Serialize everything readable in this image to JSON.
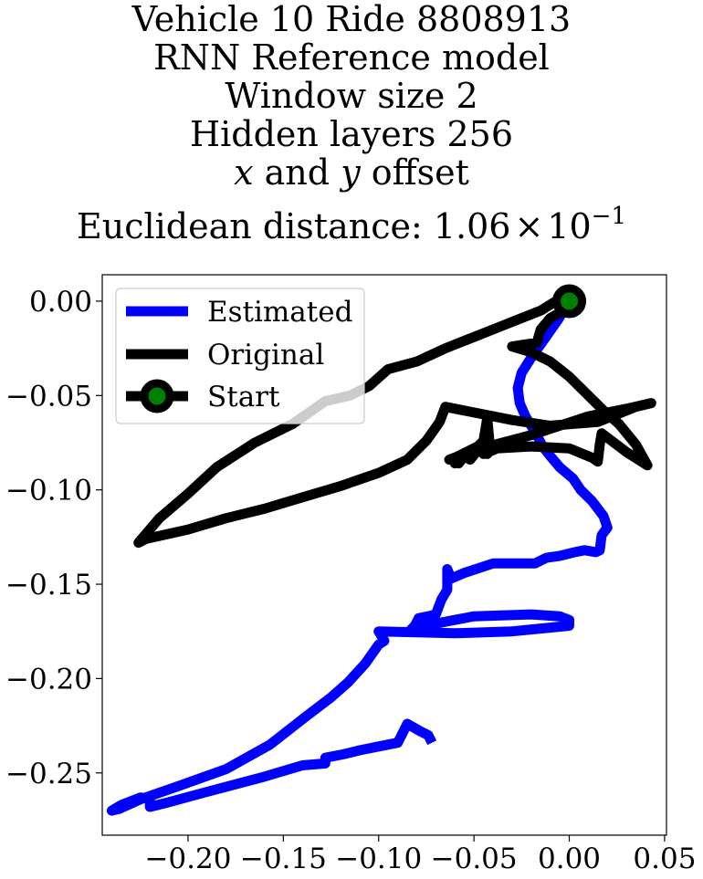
{
  "chart_data": {
    "type": "line",
    "title_lines": [
      "Vehicle 10 Ride 8808913",
      "RNN Reference model",
      "Window size 2",
      "Hidden layers 256"
    ],
    "title_offset_line": {
      "x": "x",
      "and": " and ",
      "y": "y",
      "rest": " offset"
    },
    "title_distance": {
      "prefix": "Euclidean distance: ",
      "mantissa": "1.06",
      "times": "×",
      "base": "10",
      "exponent": "−1"
    },
    "xlim": [
      -0.245,
      0.051
    ],
    "ylim": [
      -0.283,
      0.014
    ],
    "x_ticks": [
      -0.2,
      -0.15,
      -0.1,
      -0.05,
      0.0,
      0.05
    ],
    "x_tick_labels": [
      "−0.20",
      "−0.15",
      "−0.10",
      "−0.05",
      "0.00",
      "0.05"
    ],
    "y_ticks": [
      0.0,
      -0.05,
      -0.1,
      -0.15,
      -0.2,
      -0.25
    ],
    "y_tick_labels": [
      "0.00",
      "−0.05",
      "−0.10",
      "−0.15",
      "−0.20",
      "−0.25"
    ],
    "legend": {
      "placement": "top-left",
      "entries": [
        "Estimated",
        "Original",
        "Start"
      ]
    },
    "colors": {
      "estimated": "#0000ff",
      "original": "#000000",
      "start_marker": "#008000"
    },
    "series": [
      {
        "name": "Estimated",
        "x": [
          0.0,
          -0.006,
          -0.013,
          -0.02,
          -0.025,
          -0.027,
          -0.026,
          -0.023,
          -0.02,
          -0.017,
          -0.014,
          -0.01,
          -0.005,
          0.002,
          0.006,
          0.012,
          0.018,
          0.02,
          0.017,
          0.016,
          0.014,
          0.008,
          0.003,
          -0.005,
          -0.012,
          -0.018,
          -0.025,
          -0.04,
          -0.055,
          -0.062,
          -0.064,
          -0.064,
          -0.067,
          -0.07,
          -0.074,
          -0.079,
          -0.081,
          -0.083,
          -0.082,
          -0.076,
          -0.05,
          -0.02,
          -0.005,
          0.0,
          0.0,
          -0.01,
          -0.03,
          -0.06,
          -0.1,
          -0.097,
          -0.1,
          -0.107,
          -0.116,
          -0.125,
          -0.138,
          -0.157,
          -0.18,
          -0.205,
          -0.225,
          -0.236,
          -0.24,
          -0.235,
          -0.225,
          -0.22,
          -0.22,
          -0.212,
          -0.19,
          -0.16,
          -0.14,
          -0.128,
          -0.128,
          -0.118,
          -0.11,
          -0.1,
          -0.09,
          -0.085,
          -0.078,
          -0.074,
          -0.072
        ],
        "y": [
          0.0,
          -0.01,
          -0.02,
          -0.03,
          -0.038,
          -0.046,
          -0.054,
          -0.061,
          -0.066,
          -0.071,
          -0.077,
          -0.082,
          -0.088,
          -0.094,
          -0.1,
          -0.106,
          -0.114,
          -0.12,
          -0.124,
          -0.132,
          -0.133,
          -0.132,
          -0.133,
          -0.135,
          -0.136,
          -0.139,
          -0.139,
          -0.139,
          -0.144,
          -0.147,
          -0.142,
          -0.153,
          -0.158,
          -0.166,
          -0.167,
          -0.168,
          -0.172,
          -0.174,
          -0.175,
          -0.172,
          -0.167,
          -0.166,
          -0.167,
          -0.169,
          -0.172,
          -0.173,
          -0.175,
          -0.176,
          -0.175,
          -0.18,
          -0.182,
          -0.192,
          -0.202,
          -0.21,
          -0.22,
          -0.235,
          -0.248,
          -0.257,
          -0.264,
          -0.269,
          -0.27,
          -0.267,
          -0.263,
          -0.264,
          -0.268,
          -0.266,
          -0.26,
          -0.252,
          -0.246,
          -0.245,
          -0.242,
          -0.24,
          -0.238,
          -0.236,
          -0.234,
          -0.224,
          -0.228,
          -0.23,
          -0.234
        ]
      },
      {
        "name": "Original",
        "x": [
          0.0,
          -0.007,
          -0.015,
          -0.025,
          -0.035,
          -0.05,
          -0.065,
          -0.08,
          -0.095,
          -0.105,
          -0.115,
          -0.128,
          -0.135,
          -0.145,
          -0.165,
          -0.185,
          -0.2,
          -0.215,
          -0.226,
          -0.222,
          -0.2,
          -0.18,
          -0.16,
          -0.14,
          -0.12,
          -0.1,
          -0.085,
          -0.075,
          -0.068,
          -0.065,
          -0.05,
          -0.03,
          -0.01,
          0.015,
          0.035,
          0.043,
          0.03,
          0.01,
          -0.005,
          -0.02,
          -0.035,
          -0.05,
          -0.063,
          -0.058,
          -0.06,
          -0.051,
          -0.045,
          -0.043,
          -0.042,
          -0.043,
          -0.048,
          -0.052,
          -0.055,
          -0.058,
          -0.062,
          -0.048,
          -0.045,
          -0.04,
          -0.038,
          -0.02,
          0.0,
          0.012,
          0.015,
          0.016,
          0.017,
          0.03,
          0.041,
          0.035,
          0.026,
          0.018,
          0.009,
          0.0,
          -0.01,
          -0.02,
          -0.03,
          -0.017,
          -0.015,
          -0.01,
          -0.003,
          0.0,
          0.002
        ],
        "y": [
          0.0,
          0.0,
          -0.005,
          -0.009,
          -0.013,
          -0.019,
          -0.025,
          -0.032,
          -0.036,
          -0.045,
          -0.05,
          -0.053,
          -0.058,
          -0.065,
          -0.075,
          -0.088,
          -0.102,
          -0.115,
          -0.128,
          -0.126,
          -0.121,
          -0.115,
          -0.11,
          -0.104,
          -0.098,
          -0.091,
          -0.084,
          -0.074,
          -0.064,
          -0.056,
          -0.059,
          -0.063,
          -0.066,
          -0.064,
          -0.056,
          -0.054,
          -0.057,
          -0.061,
          -0.066,
          -0.071,
          -0.075,
          -0.079,
          -0.084,
          -0.083,
          -0.086,
          -0.08,
          -0.074,
          -0.062,
          -0.073,
          -0.081,
          -0.079,
          -0.084,
          -0.082,
          -0.086,
          -0.084,
          -0.077,
          -0.081,
          -0.079,
          -0.078,
          -0.077,
          -0.078,
          -0.083,
          -0.085,
          -0.076,
          -0.07,
          -0.08,
          -0.087,
          -0.076,
          -0.065,
          -0.058,
          -0.049,
          -0.04,
          -0.032,
          -0.027,
          -0.024,
          -0.022,
          -0.015,
          -0.009,
          -0.005,
          -0.002,
          0.0
        ]
      },
      {
        "name": "Start",
        "x": [
          0.0
        ],
        "y": [
          0.0
        ]
      }
    ]
  }
}
